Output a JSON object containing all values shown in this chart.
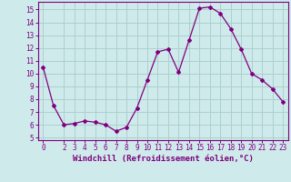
{
  "x": [
    0,
    1,
    2,
    3,
    4,
    5,
    6,
    7,
    8,
    9,
    10,
    11,
    12,
    13,
    14,
    15,
    16,
    17,
    18,
    19,
    20,
    21,
    22,
    23
  ],
  "y": [
    10.5,
    7.5,
    6.0,
    6.1,
    6.3,
    6.2,
    6.0,
    5.5,
    5.8,
    7.3,
    9.5,
    11.7,
    11.9,
    10.1,
    12.6,
    15.1,
    15.2,
    14.7,
    13.5,
    11.9,
    10.0,
    9.5,
    8.8,
    7.8
  ],
  "line_color": "#800080",
  "marker": "D",
  "markersize": 2.0,
  "linewidth": 0.9,
  "bg_color": "#ceeaea",
  "grid_color": "#a8cccc",
  "xlabel": "Windchill (Refroidissement éolien,°C)",
  "xlabel_color": "#800080",
  "xlabel_fontsize": 6.5,
  "tick_color": "#800080",
  "tick_fontsize": 5.5,
  "ylim": [
    4.8,
    15.6
  ],
  "xlim": [
    -0.5,
    23.5
  ],
  "yticks": [
    5,
    6,
    7,
    8,
    9,
    10,
    11,
    12,
    13,
    14,
    15
  ],
  "xticks": [
    0,
    2,
    3,
    4,
    5,
    6,
    7,
    8,
    9,
    10,
    11,
    12,
    13,
    14,
    15,
    16,
    17,
    18,
    19,
    20,
    21,
    22,
    23
  ]
}
